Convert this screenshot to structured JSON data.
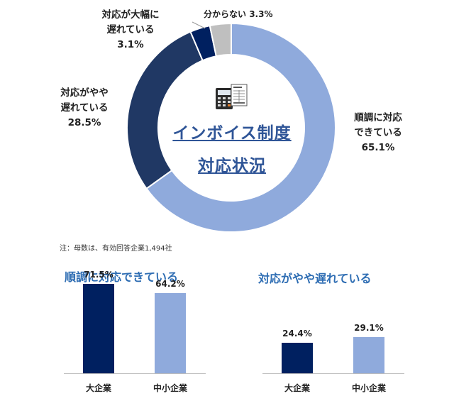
{
  "chart_data": [
    {
      "type": "pie",
      "title": "インボイス制度対応状況",
      "title_lines": [
        "インボイス制度",
        "対応状況"
      ],
      "slices": [
        {
          "label_lines": [
            "順調に対応",
            "できている"
          ],
          "value": 65.1,
          "value_label": "65.1%",
          "color": "#8faadc"
        },
        {
          "label_lines": [
            "対応がやや",
            "遅れている"
          ],
          "value": 28.5,
          "value_label": "28.5%",
          "color": "#203864"
        },
        {
          "label_lines": [
            "対応が大幅に",
            "遅れている"
          ],
          "value": 3.1,
          "value_label": "3.1%",
          "color": "#002060"
        },
        {
          "label_lines": [
            "分からない"
          ],
          "value": 3.3,
          "value_label": "3.3%",
          "color": "#bfbfbf"
        }
      ],
      "note": "注：母数は、有効回答企業1,494社"
    },
    {
      "type": "bar",
      "title": "順調に対応できている",
      "categories": [
        "大企業",
        "中小企業"
      ],
      "values": [
        71.5,
        64.2
      ],
      "value_labels": [
        "71.5%",
        "64.2%"
      ],
      "colors": [
        "#002060",
        "#8faadc"
      ]
    },
    {
      "type": "bar",
      "title": "対応がやや遅れている",
      "categories": [
        "大企業",
        "中小企業"
      ],
      "values": [
        24.4,
        29.1
      ],
      "value_labels": [
        "24.4%",
        "29.1%"
      ],
      "colors": [
        "#002060",
        "#8faadc"
      ]
    }
  ]
}
